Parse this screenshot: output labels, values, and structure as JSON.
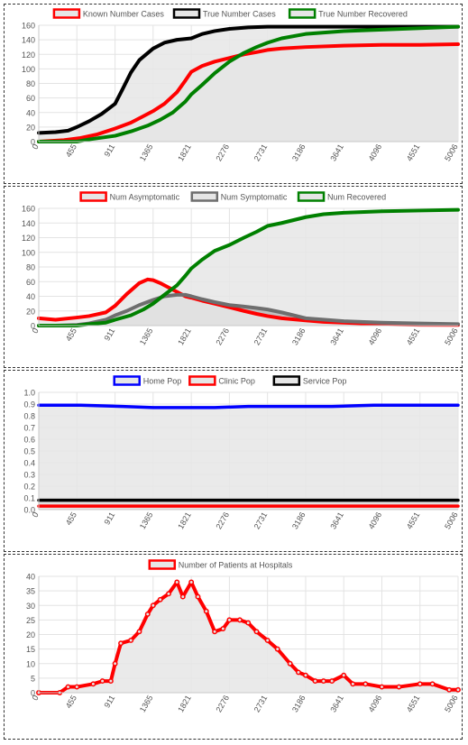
{
  "x_ticks": [
    0,
    455,
    911,
    1365,
    1821,
    2276,
    2731,
    3186,
    3641,
    4096,
    4551,
    5006
  ],
  "chart_data": [
    {
      "type": "area",
      "title": "",
      "xlabel": "",
      "ylabel": "",
      "xlim": [
        0,
        5006
      ],
      "ylim": [
        0,
        160
      ],
      "y_ticks": [
        0,
        20,
        40,
        60,
        80,
        100,
        120,
        140,
        160
      ],
      "legend_position": "top",
      "grid": true,
      "series": [
        {
          "name": "Known Number Cases",
          "color": "#ff0000",
          "fill": "#e6e6e6",
          "x": [
            0,
            300,
            500,
            700,
            911,
            1100,
            1250,
            1365,
            1500,
            1650,
            1750,
            1821,
            1950,
            2100,
            2276,
            2450,
            2600,
            2731,
            2900,
            3186,
            3641,
            4096,
            4551,
            5006
          ],
          "y": [
            0,
            2,
            5,
            10,
            18,
            26,
            35,
            42,
            52,
            68,
            84,
            96,
            104,
            110,
            115,
            120,
            123,
            126,
            128,
            130,
            132,
            133,
            133,
            134
          ]
        },
        {
          "name": "True Number Cases",
          "color": "#000000",
          "fill": "#e6e6e6",
          "x": [
            0,
            200,
            350,
            455,
            600,
            750,
            911,
            1000,
            1100,
            1200,
            1365,
            1500,
            1650,
            1821,
            1950,
            2100,
            2276,
            2500,
            2731,
            3186,
            3641,
            4096,
            4551,
            5006
          ],
          "y": [
            12,
            13,
            15,
            20,
            28,
            38,
            52,
            72,
            95,
            112,
            128,
            136,
            140,
            142,
            148,
            152,
            155,
            157,
            158,
            158,
            158,
            158,
            158,
            158
          ]
        },
        {
          "name": "True Number Recovered",
          "color": "#008000",
          "fill": "#b8b8b8",
          "x": [
            0,
            455,
            600,
            911,
            1100,
            1300,
            1450,
            1600,
            1750,
            1821,
            1950,
            2100,
            2276,
            2450,
            2600,
            2731,
            2900,
            3186,
            3641,
            4096,
            4551,
            5006
          ],
          "y": [
            0,
            0,
            3,
            8,
            14,
            22,
            30,
            40,
            55,
            65,
            78,
            94,
            110,
            122,
            130,
            136,
            142,
            148,
            152,
            154,
            156,
            158
          ]
        }
      ]
    },
    {
      "type": "area",
      "title": "",
      "xlabel": "",
      "ylabel": "",
      "xlim": [
        0,
        5006
      ],
      "ylim": [
        0,
        160
      ],
      "y_ticks": [
        0,
        20,
        40,
        60,
        80,
        100,
        120,
        140,
        160
      ],
      "legend_position": "top",
      "grid": true,
      "series": [
        {
          "name": "Num Asymptomatic",
          "color": "#ff0000",
          "fill": "#e6e6e6",
          "x": [
            0,
            200,
            455,
            600,
            800,
            911,
            1050,
            1200,
            1300,
            1365,
            1450,
            1550,
            1650,
            1750,
            1821,
            1950,
            2100,
            2276,
            2450,
            2600,
            2731,
            2900,
            3186,
            3400,
            3641,
            4096,
            4551,
            5006
          ],
          "y": [
            10,
            8,
            11,
            13,
            18,
            27,
            43,
            58,
            63,
            62,
            58,
            52,
            46,
            40,
            38,
            34,
            30,
            25,
            20,
            16,
            13,
            10,
            7,
            5,
            4,
            2,
            1,
            1
          ]
        },
        {
          "name": "Num Symptomatic",
          "color": "#6e6e6e",
          "fill": "#b8b8b8",
          "x": [
            0,
            200,
            455,
            600,
            800,
            911,
            1050,
            1200,
            1365,
            1500,
            1650,
            1750,
            1821,
            1950,
            2100,
            2276,
            2450,
            2600,
            2731,
            2900,
            3186,
            3641,
            4096,
            4551,
            5006
          ],
          "y": [
            0,
            0,
            1,
            3,
            8,
            14,
            20,
            28,
            35,
            40,
            42,
            42,
            40,
            36,
            32,
            28,
            26,
            24,
            22,
            18,
            10,
            6,
            4,
            3,
            2
          ]
        },
        {
          "name": "Num Recovered",
          "color": "#008000",
          "fill": "#e6e6e6",
          "x": [
            0,
            455,
            600,
            800,
            911,
            1100,
            1250,
            1365,
            1500,
            1650,
            1750,
            1821,
            1950,
            2100,
            2276,
            2450,
            2600,
            2731,
            2900,
            3186,
            3400,
            3641,
            4096,
            4551,
            5006
          ],
          "y": [
            0,
            0,
            2,
            4,
            8,
            14,
            22,
            30,
            42,
            55,
            68,
            78,
            90,
            102,
            110,
            120,
            128,
            136,
            140,
            148,
            152,
            154,
            156,
            157,
            158
          ]
        }
      ]
    },
    {
      "type": "line",
      "title": "",
      "xlabel": "",
      "ylabel": "",
      "xlim": [
        0,
        5006
      ],
      "ylim": [
        0,
        1.0
      ],
      "y_ticks": [
        0,
        0.1,
        0.2,
        0.3,
        0.4,
        0.5,
        0.6,
        0.7,
        0.8,
        0.9,
        1.0
      ],
      "legend_position": "top",
      "grid": true,
      "series": [
        {
          "name": "Home Pop",
          "color": "#0000ff",
          "fill": "#e6e6e6",
          "x": [
            0,
            500,
            1000,
            1365,
            1600,
            1821,
            2100,
            2500,
            3000,
            3500,
            4000,
            4500,
            5006
          ],
          "y": [
            0.89,
            0.89,
            0.88,
            0.87,
            0.87,
            0.87,
            0.87,
            0.88,
            0.88,
            0.88,
            0.89,
            0.89,
            0.89
          ]
        },
        {
          "name": "Clinic Pop",
          "color": "#ff0000",
          "fill": "#e6e6e6",
          "x": [
            0,
            1000,
            2000,
            3000,
            4000,
            5006
          ],
          "y": [
            0.03,
            0.03,
            0.03,
            0.03,
            0.03,
            0.03
          ]
        },
        {
          "name": "Service Pop",
          "color": "#000000",
          "fill": "#b8b8b8",
          "x": [
            0,
            1000,
            2000,
            3000,
            4000,
            5006
          ],
          "y": [
            0.08,
            0.08,
            0.08,
            0.08,
            0.08,
            0.08
          ]
        }
      ]
    },
    {
      "type": "line",
      "title": "",
      "xlabel": "",
      "ylabel": "",
      "xlim": [
        0,
        5006
      ],
      "ylim": [
        0,
        40
      ],
      "y_ticks": [
        0,
        5,
        10,
        15,
        20,
        25,
        30,
        35,
        40
      ],
      "legend_position": "top",
      "grid": true,
      "series": [
        {
          "name": "Number of Patients at Hospitals",
          "color": "#ff0000",
          "fill": "#e6e6e6",
          "x": [
            0,
            250,
            350,
            455,
            650,
            760,
            860,
            911,
            980,
            1100,
            1200,
            1300,
            1365,
            1450,
            1550,
            1650,
            1720,
            1821,
            1900,
            2000,
            2100,
            2200,
            2276,
            2400,
            2500,
            2600,
            2731,
            2850,
            3000,
            3100,
            3186,
            3300,
            3400,
            3500,
            3641,
            3750,
            3900,
            4096,
            4300,
            4551,
            4700,
            4900,
            5006
          ],
          "y": [
            0,
            0,
            2,
            2,
            3,
            4,
            4,
            10,
            17,
            18,
            21,
            27,
            30,
            32,
            34,
            38,
            33,
            38,
            33,
            28,
            21,
            22,
            25,
            25,
            24,
            21,
            18,
            15,
            10,
            7,
            6,
            4,
            4,
            4,
            6,
            3,
            3,
            2,
            2,
            3,
            3,
            1,
            1
          ]
        }
      ]
    }
  ]
}
